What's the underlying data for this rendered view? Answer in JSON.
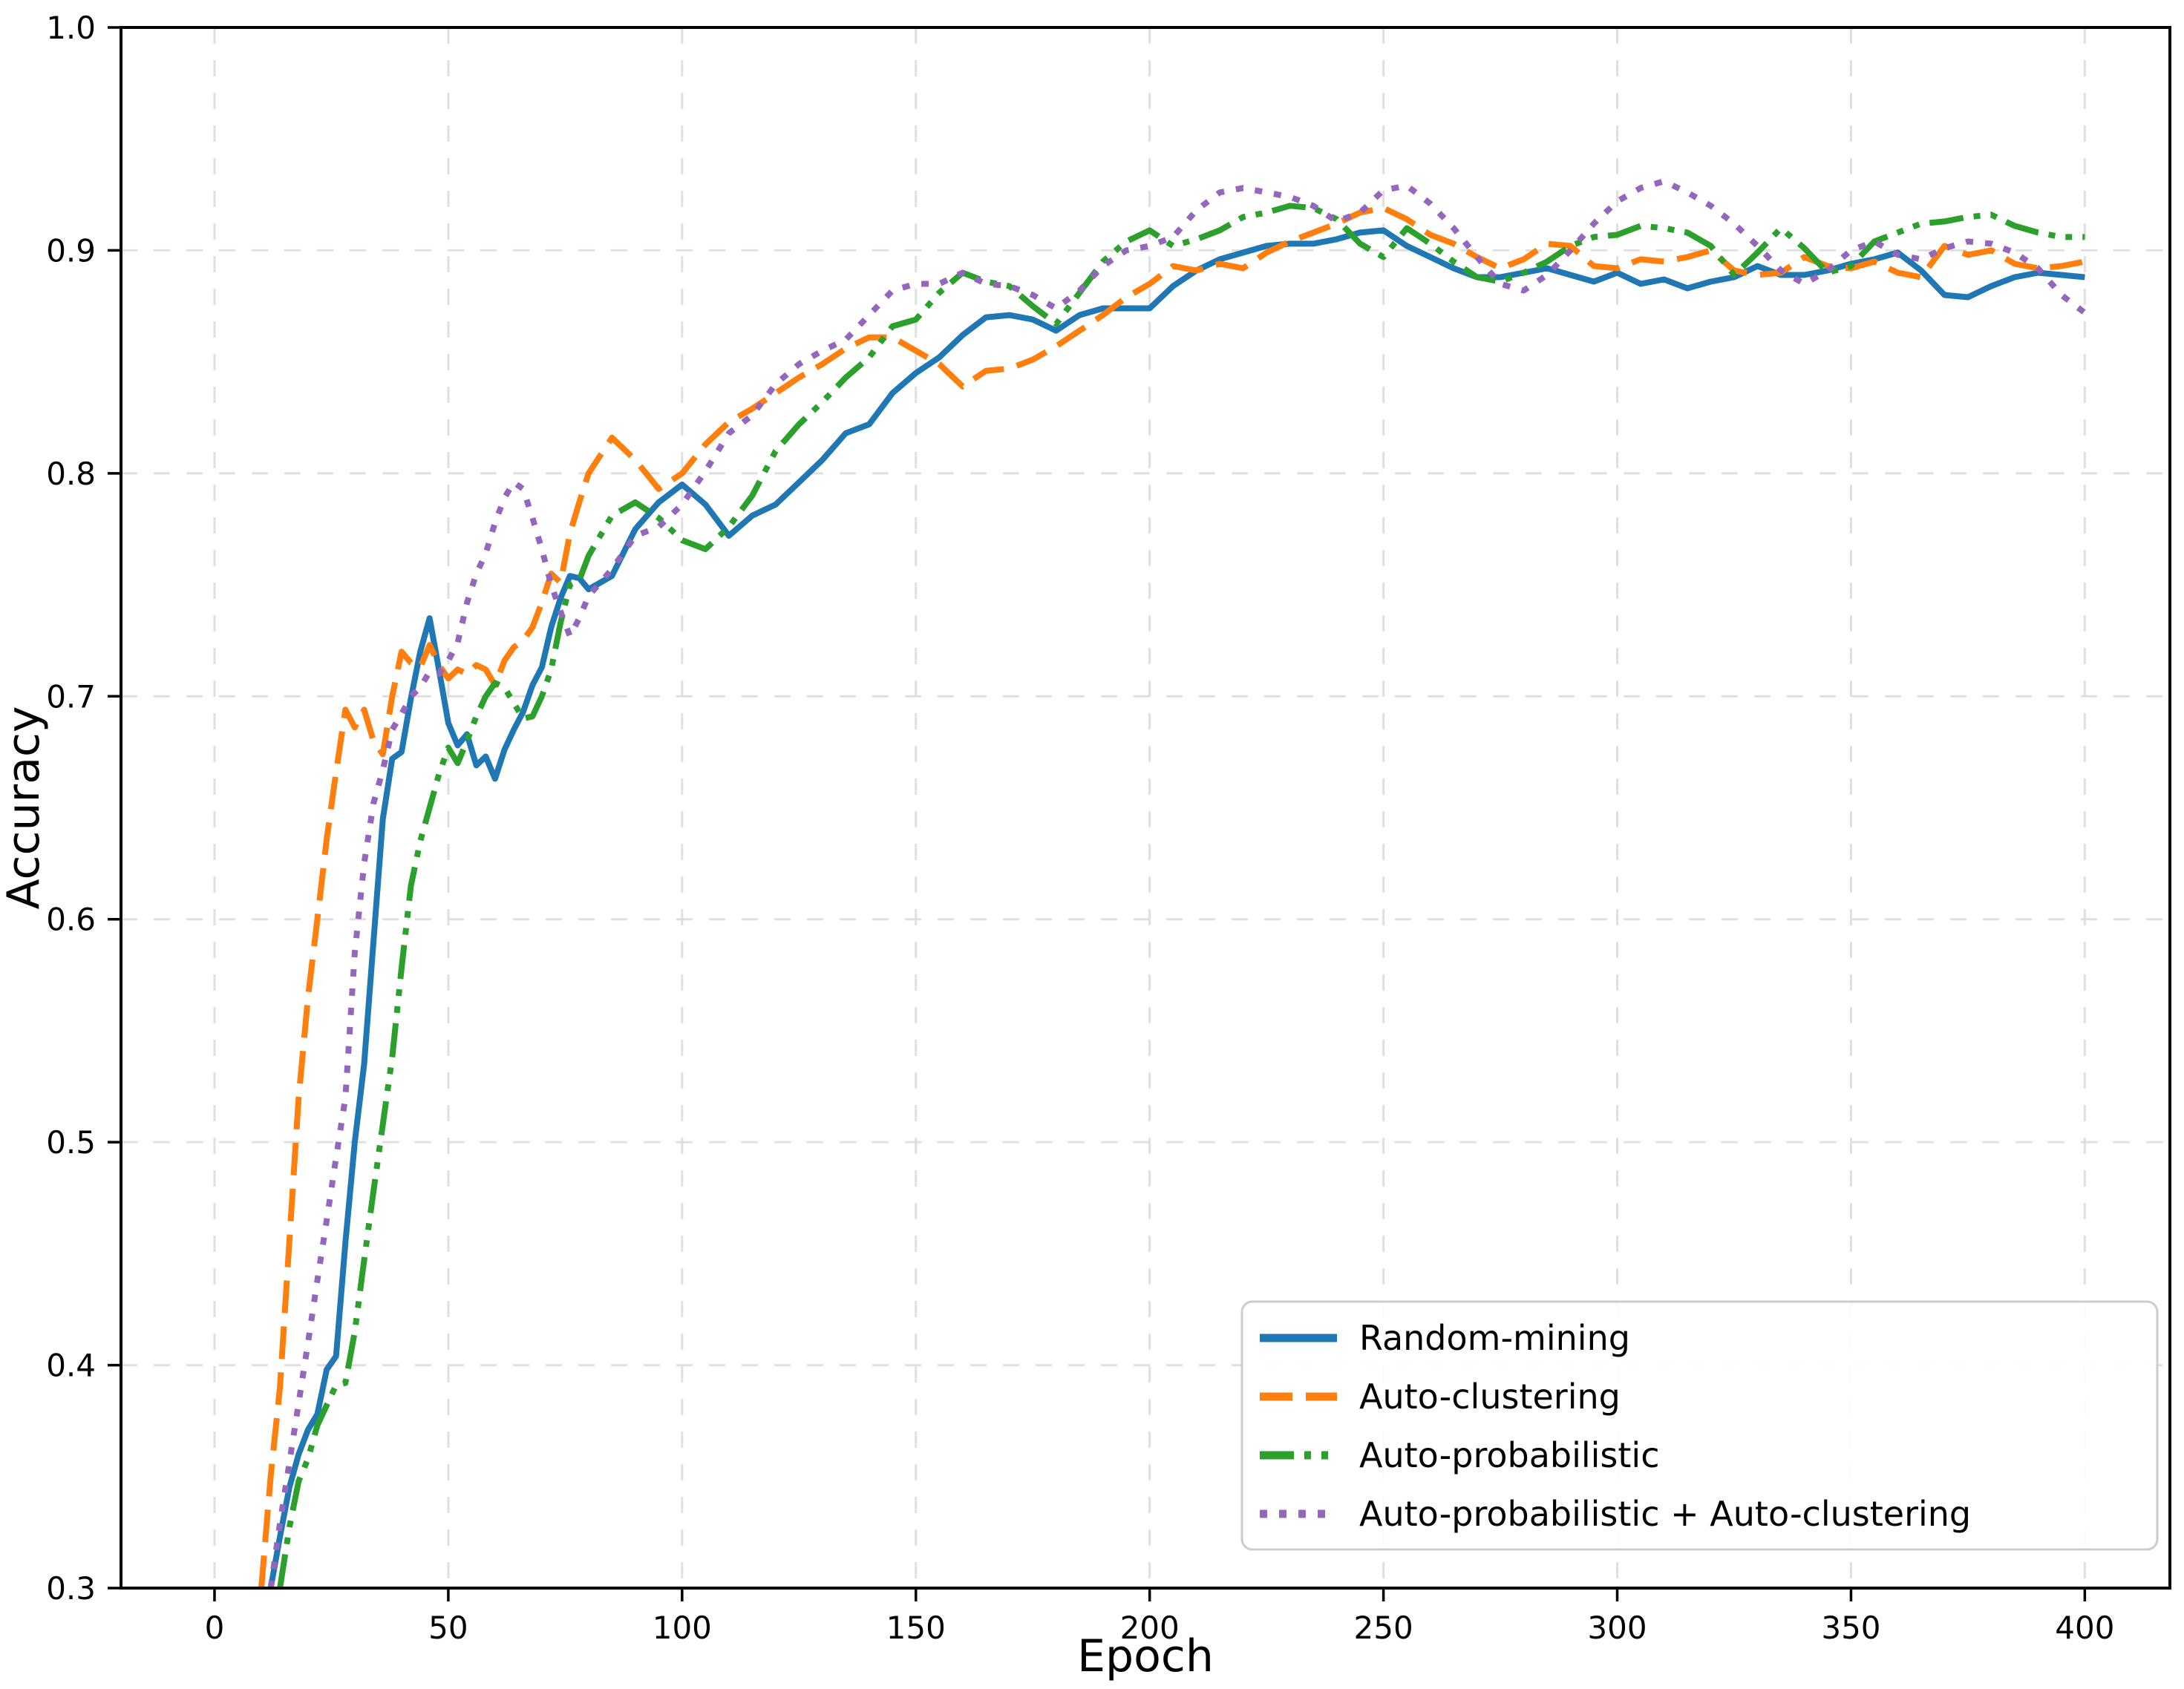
{
  "figure": {
    "background": "#ffffff",
    "title": ""
  },
  "chart_data": {
    "type": "line",
    "title": "",
    "xlabel": "Epoch",
    "ylabel": "Accuracy",
    "xlim": [
      -20,
      418.2
    ],
    "ylim": [
      0.3,
      1.0
    ],
    "xticks": [
      0,
      50,
      100,
      150,
      200,
      250,
      300,
      350,
      400
    ],
    "yticks": [
      0.3,
      0.4,
      0.5,
      0.6,
      0.7,
      0.8,
      0.9,
      1.0
    ],
    "grid": true,
    "grid_color": "#dcdcdc",
    "legend_position": "lower right",
    "x": [
      10,
      12,
      14,
      16,
      18,
      20,
      22,
      24,
      26,
      28,
      30,
      32,
      34,
      36,
      38,
      40,
      42,
      44,
      46,
      48,
      50,
      52,
      54,
      56,
      58,
      60,
      62,
      64,
      66,
      68,
      70,
      72,
      74,
      76,
      78,
      80,
      85,
      90,
      95,
      100,
      105,
      110,
      115,
      120,
      125,
      130,
      135,
      140,
      145,
      150,
      155,
      160,
      165,
      170,
      175,
      180,
      185,
      190,
      195,
      200,
      205,
      210,
      215,
      220,
      225,
      230,
      235,
      240,
      245,
      250,
      255,
      260,
      265,
      270,
      275,
      280,
      285,
      290,
      295,
      300,
      305,
      310,
      315,
      320,
      325,
      330,
      335,
      340,
      345,
      350,
      355,
      360,
      365,
      370,
      375,
      380,
      385,
      390,
      395,
      400
    ],
    "series": [
      {
        "name": "Random-mining",
        "color": "#1f77b4",
        "line_style": "solid",
        "y": [
          null,
          0.3,
          0.323,
          0.345,
          0.36,
          0.371,
          0.378,
          0.398,
          0.404,
          0.455,
          0.5,
          0.535,
          0.59,
          0.645,
          0.672,
          0.675,
          0.699,
          0.72,
          0.735,
          0.712,
          0.688,
          0.678,
          0.683,
          0.669,
          0.673,
          0.663,
          0.676,
          0.685,
          0.693,
          0.705,
          0.713,
          0.731,
          0.744,
          0.754,
          0.753,
          0.748,
          0.754,
          0.775,
          0.787,
          0.795,
          0.786,
          0.772,
          0.781,
          0.786,
          0.796,
          0.806,
          0.818,
          0.822,
          0.836,
          0.845,
          0.852,
          0.862,
          0.87,
          0.871,
          0.869,
          0.864,
          0.871,
          0.874,
          0.874,
          0.874,
          0.884,
          0.891,
          0.896,
          0.899,
          0.902,
          0.903,
          0.903,
          0.905,
          0.908,
          0.909,
          0.902,
          0.897,
          0.892,
          0.888,
          0.888,
          0.89,
          0.892,
          0.889,
          0.886,
          0.89,
          0.885,
          0.887,
          0.883,
          0.886,
          0.888,
          0.893,
          0.889,
          0.889,
          0.891,
          0.894,
          0.896,
          0.899,
          0.891,
          0.88,
          0.879,
          0.884,
          0.888,
          0.89,
          0.889,
          0.888
        ]
      },
      {
        "name": "Auto-clustering",
        "color": "#ff7f0e",
        "line_style": "dashed",
        "y": [
          0.3,
          0.35,
          0.39,
          0.455,
          0.52,
          0.565,
          0.6,
          0.636,
          0.666,
          0.694,
          0.686,
          0.694,
          0.68,
          0.674,
          0.7,
          0.72,
          0.715,
          0.713,
          0.723,
          0.714,
          0.708,
          0.712,
          0.71,
          0.714,
          0.712,
          0.705,
          0.716,
          0.722,
          0.725,
          0.731,
          0.742,
          0.755,
          0.751,
          0.773,
          0.787,
          0.8,
          0.816,
          0.806,
          0.793,
          0.8,
          0.813,
          0.823,
          0.829,
          0.836,
          0.843,
          0.849,
          0.856,
          0.861,
          0.861,
          0.855,
          0.849,
          0.839,
          0.846,
          0.847,
          0.851,
          0.857,
          0.864,
          0.871,
          0.879,
          0.885,
          0.893,
          0.891,
          0.894,
          0.892,
          0.899,
          0.904,
          0.908,
          0.912,
          0.917,
          0.919,
          0.914,
          0.907,
          0.903,
          0.897,
          0.892,
          0.896,
          0.903,
          0.902,
          0.893,
          0.892,
          0.896,
          0.895,
          0.897,
          0.9,
          0.891,
          0.889,
          0.89,
          0.897,
          0.893,
          0.892,
          0.895,
          0.89,
          0.888,
          0.902,
          0.898,
          0.9,
          0.894,
          0.892,
          0.893,
          0.895
        ]
      },
      {
        "name": "Auto-probabilistic",
        "color": "#2ca02c",
        "line_style": "dash-dot-dot",
        "y": [
          null,
          null,
          0.3,
          0.327,
          0.348,
          0.358,
          0.373,
          0.382,
          0.391,
          0.392,
          0.415,
          0.447,
          0.478,
          0.508,
          0.538,
          0.578,
          0.615,
          0.635,
          0.65,
          0.665,
          0.677,
          0.67,
          0.68,
          0.691,
          0.7,
          0.706,
          0.704,
          0.697,
          0.69,
          0.691,
          0.7,
          0.712,
          0.733,
          0.75,
          0.752,
          0.763,
          0.781,
          0.787,
          0.78,
          0.77,
          0.766,
          0.776,
          0.79,
          0.81,
          0.822,
          0.832,
          0.843,
          0.852,
          0.866,
          0.869,
          0.881,
          0.89,
          0.886,
          0.884,
          0.875,
          0.867,
          0.881,
          0.895,
          0.904,
          0.909,
          0.902,
          0.905,
          0.909,
          0.915,
          0.917,
          0.92,
          0.919,
          0.914,
          0.903,
          0.897,
          0.91,
          0.903,
          0.895,
          0.888,
          0.886,
          0.89,
          0.895,
          0.902,
          0.906,
          0.907,
          0.911,
          0.91,
          0.908,
          0.902,
          0.889,
          0.899,
          0.91,
          0.901,
          0.89,
          0.893,
          0.904,
          0.908,
          0.912,
          0.913,
          0.915,
          0.916,
          0.911,
          0.908,
          0.906,
          0.906
        ]
      },
      {
        "name": "Auto-probabilistic + Auto-clustering",
        "color": "#9467bd",
        "line_style": "dotted",
        "y": [
          null,
          0.3,
          0.329,
          0.356,
          0.383,
          0.41,
          0.438,
          0.465,
          0.493,
          0.52,
          0.585,
          0.625,
          0.652,
          0.667,
          0.685,
          0.692,
          0.7,
          0.704,
          0.711,
          0.71,
          0.716,
          0.724,
          0.742,
          0.755,
          0.764,
          0.778,
          0.789,
          0.796,
          0.793,
          0.78,
          0.766,
          0.75,
          0.738,
          0.727,
          0.735,
          0.745,
          0.757,
          0.772,
          0.776,
          0.786,
          0.801,
          0.818,
          0.826,
          0.84,
          0.849,
          0.855,
          0.86,
          0.871,
          0.882,
          0.885,
          0.885,
          0.89,
          0.885,
          0.884,
          0.88,
          0.874,
          0.882,
          0.893,
          0.9,
          0.902,
          0.906,
          0.918,
          0.926,
          0.928,
          0.926,
          0.924,
          0.92,
          0.913,
          0.917,
          0.927,
          0.929,
          0.921,
          0.91,
          0.897,
          0.885,
          0.882,
          0.889,
          0.9,
          0.912,
          0.922,
          0.928,
          0.931,
          0.926,
          0.92,
          0.912,
          0.902,
          0.891,
          0.885,
          0.891,
          0.9,
          0.904,
          0.898,
          0.896,
          0.901,
          0.904,
          0.903,
          0.899,
          0.892,
          0.88,
          0.872
        ]
      }
    ],
    "legend_labels": [
      "Random-mining",
      "Auto-clustering",
      "Auto-probabilistic",
      "Auto-probabilistic + Auto-clustering"
    ]
  }
}
